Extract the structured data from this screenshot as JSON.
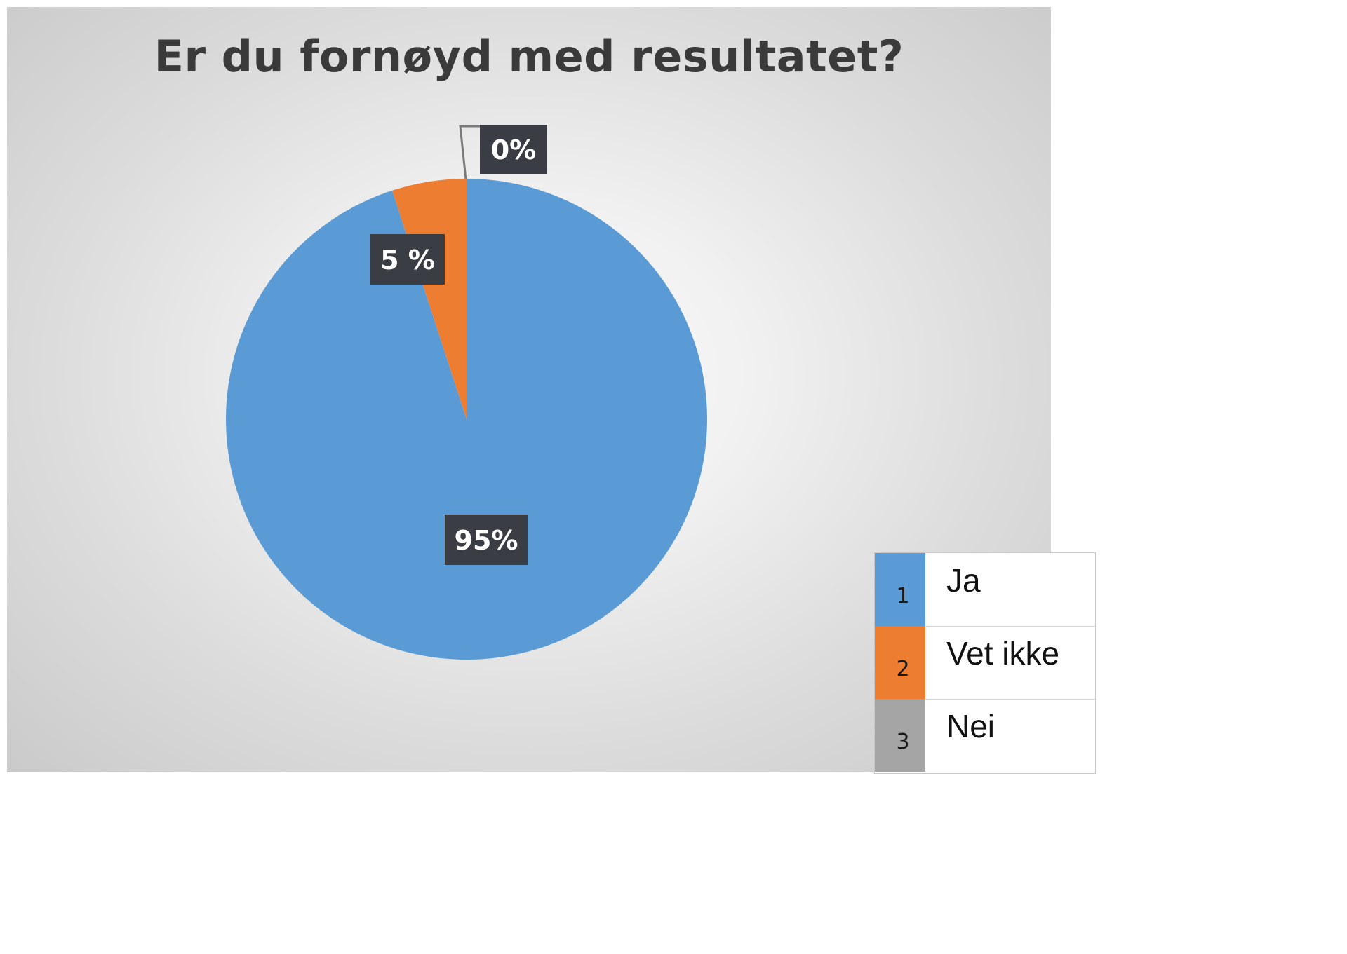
{
  "chart_data": {
    "type": "pie",
    "title": "Er du fornøyd med resultatet?",
    "categories": [
      "Ja",
      "Vet ikke",
      "Nei"
    ],
    "values": [
      95,
      5,
      0
    ],
    "data_labels": [
      "95%",
      "5 %",
      "0%"
    ],
    "colors": [
      "#5b9bd5",
      "#ed7d31",
      "#a5a5a5"
    ],
    "legend": {
      "placement": "bottom-right",
      "indices": [
        "1",
        "2",
        "3"
      ]
    }
  }
}
